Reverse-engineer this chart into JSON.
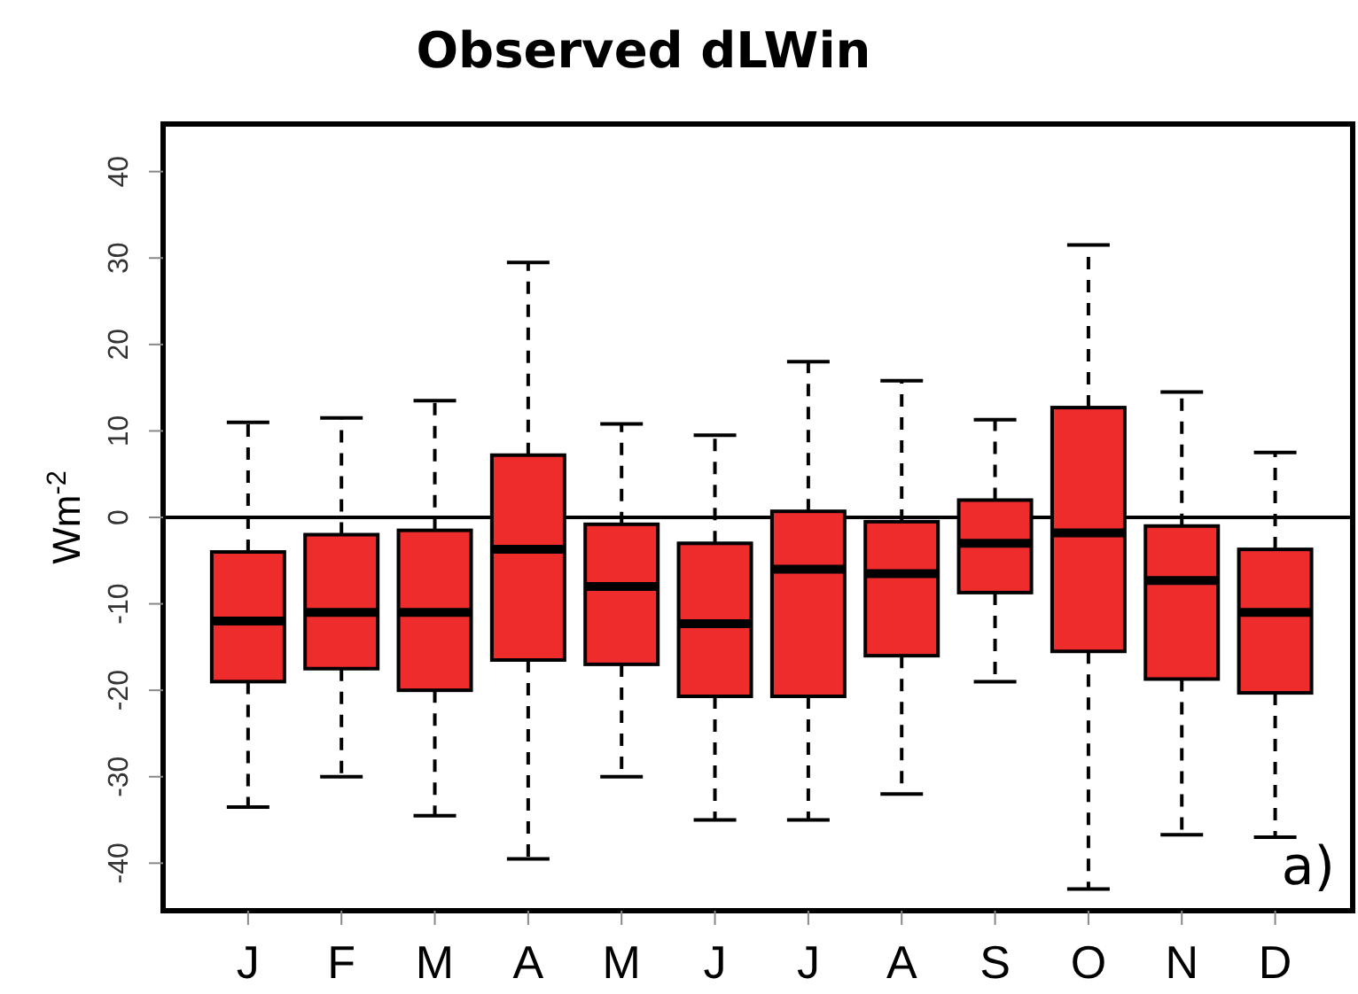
{
  "chart_data": {
    "type": "box",
    "title": "Observed dLWin",
    "ylabel": "Wm$^{-2}$",
    "categories": [
      "J",
      "F",
      "M",
      "A",
      "M",
      "J",
      "J",
      "A",
      "S",
      "O",
      "N",
      "D"
    ],
    "boxes": [
      {
        "low": -33.5,
        "q1": -19,
        "median": -12,
        "q3": -4,
        "high": 11
      },
      {
        "low": -30,
        "q1": -17.5,
        "median": -11,
        "q3": -2,
        "high": 11.5
      },
      {
        "low": -34.5,
        "q1": -20,
        "median": -11,
        "q3": -1.5,
        "high": 13.5
      },
      {
        "low": -39.5,
        "q1": -16.5,
        "median": -3.7,
        "q3": 7.2,
        "high": 29.5
      },
      {
        "low": -30,
        "q1": -17,
        "median": -8,
        "q3": -0.8,
        "high": 10.8
      },
      {
        "low": -35,
        "q1": -20.7,
        "median": -12.3,
        "q3": -3,
        "high": 9.5
      },
      {
        "low": -35,
        "q1": -20.7,
        "median": -6,
        "q3": 0.7,
        "high": 18
      },
      {
        "low": -32,
        "q1": -16,
        "median": -6.5,
        "q3": -0.5,
        "high": 15.8
      },
      {
        "low": -19,
        "q1": -8.7,
        "median": -3,
        "q3": 2,
        "high": 11.3
      },
      {
        "low": -43,
        "q1": -15.5,
        "median": -1.8,
        "q3": 12.7,
        "high": 31.5
      },
      {
        "low": -36.7,
        "q1": -18.7,
        "median": -7.3,
        "q3": -1,
        "high": 14.5
      },
      {
        "low": -37,
        "q1": -20.3,
        "median": -11,
        "q3": -3.7,
        "high": 7.5
      }
    ],
    "color": "#ee2c2c",
    "ylim": [
      -45.5,
      45.5
    ],
    "yticks": [
      -40,
      -30,
      -20,
      -10,
      0,
      10,
      20,
      30,
      40
    ],
    "ref_lines": [
      {
        "axis": "y",
        "value": 0
      }
    ],
    "annotations": [
      "a)"
    ]
  }
}
